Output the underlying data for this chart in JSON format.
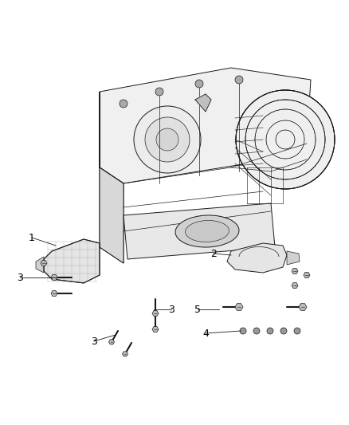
{
  "background_color": "#ffffff",
  "figure_width": 4.38,
  "figure_height": 5.33,
  "dpi": 100,
  "line_color": "#1a1a1a",
  "lw_main": 0.7,
  "label_fontsize": 8,
  "label_color": "#000000"
}
